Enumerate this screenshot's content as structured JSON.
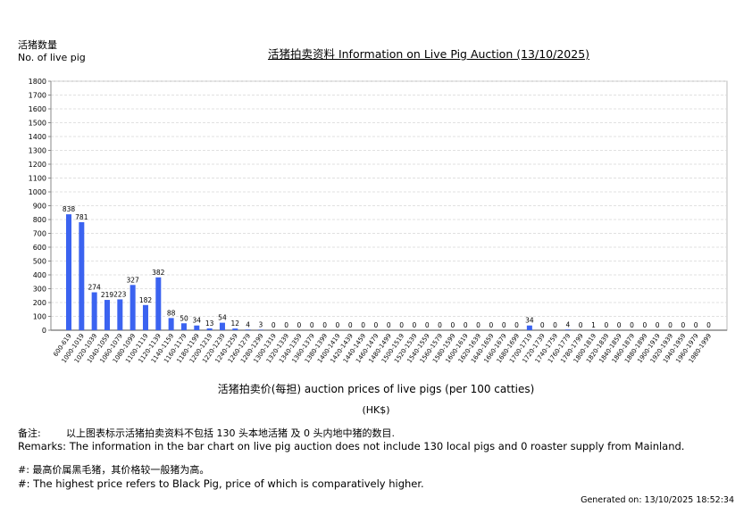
{
  "header": {
    "y_axis_label_zh": "活猪数量",
    "y_axis_label_en": "No. of live pig",
    "title": "活猪拍卖资料 Information on Live Pig Auction (13/10/2025)"
  },
  "axis": {
    "x_title": "活猪拍卖价(每担) auction prices of live pigs (per 100 catties)",
    "x_unit": "(HK$)"
  },
  "remarks": {
    "zh_label": "备注:",
    "zh_text": "以上图表标示活猪拍卖资料不包括 130 头本地活猪 及 0 头内地中猪的数目.",
    "en_text": "Remarks: The information in the bar chart on live pig auction does not include 130 local pigs and 0 roaster supply from Mainland.",
    "note_zh": "#: 最高价属黑毛猪，其价格较一般猪为高。",
    "note_en": "#: The highest price refers to Black Pig, price of which is comparatively higher.",
    "generated": "Generated on: 13/10/2025 18:52:34"
  },
  "colors": {
    "bar": "#3b63f0",
    "grid": "#d8d8d8",
    "axis": "#888888"
  },
  "chart_data": {
    "type": "bar",
    "title": "活猪拍卖资料 Information on Live Pig Auction (13/10/2025)",
    "xlabel": "活猪拍卖价(每担) auction prices of live pigs (per 100 catties) (HK$)",
    "ylabel": "活猪数量 No. of live pig",
    "ylim": [
      0,
      1800
    ],
    "yticks": [
      0,
      100,
      200,
      300,
      400,
      500,
      600,
      700,
      800,
      900,
      1000,
      1100,
      1200,
      1300,
      1400,
      1500,
      1600,
      1700,
      1800
    ],
    "grid": true,
    "legend": "none",
    "categories": [
      "600-619",
      "1000-1019",
      "1020-1039",
      "1040-1059",
      "1060-1079",
      "1080-1099",
      "1100-1119",
      "1120-1139",
      "1140-1159",
      "1160-1179",
      "1180-1199",
      "1200-1219",
      "1220-1239",
      "1240-1259",
      "1260-1279",
      "1280-1299",
      "1300-1319",
      "1320-1339",
      "1340-1359",
      "1360-1379",
      "1380-1399",
      "1400-1419",
      "1420-1439",
      "1440-1459",
      "1460-1479",
      "1480-1499",
      "1500-1519",
      "1520-1539",
      "1540-1559",
      "1560-1579",
      "1580-1599",
      "1600-1619",
      "1620-1639",
      "1640-1659",
      "1660-1679",
      "1680-1699",
      "1700-1719",
      "1720-1739",
      "1740-1759",
      "1760-1779",
      "1780-1799",
      "1800-1819",
      "1820-1839",
      "1840-1859",
      "1860-1879",
      "1880-1899",
      "1900-1919",
      "1920-1939",
      "1940-1959",
      "1960-1979",
      "1980-1999"
    ],
    "values": [
      838,
      781,
      274,
      219,
      223,
      327,
      182,
      382,
      88,
      50,
      34,
      13,
      54,
      12,
      4,
      3,
      0,
      0,
      0,
      0,
      0,
      0,
      0,
      0,
      0,
      0,
      0,
      0,
      0,
      0,
      0,
      0,
      0,
      0,
      0,
      0,
      34,
      0,
      0,
      4,
      0,
      1,
      0,
      0,
      0,
      0,
      0,
      0,
      0,
      0,
      0
    ]
  }
}
